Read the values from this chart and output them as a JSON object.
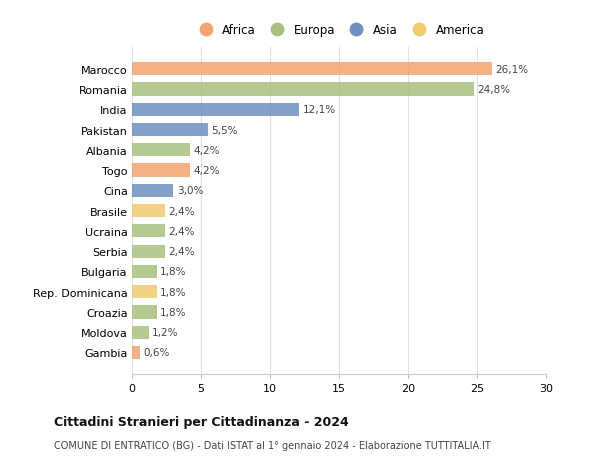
{
  "countries": [
    "Marocco",
    "Romania",
    "India",
    "Pakistan",
    "Albania",
    "Togo",
    "Cina",
    "Brasile",
    "Ucraina",
    "Serbia",
    "Bulgaria",
    "Rep. Dominicana",
    "Croazia",
    "Moldova",
    "Gambia"
  ],
  "values": [
    26.1,
    24.8,
    12.1,
    5.5,
    4.2,
    4.2,
    3.0,
    2.4,
    2.4,
    2.4,
    1.8,
    1.8,
    1.8,
    1.2,
    0.6
  ],
  "labels": [
    "26,1%",
    "24,8%",
    "12,1%",
    "5,5%",
    "4,2%",
    "4,2%",
    "3,0%",
    "2,4%",
    "2,4%",
    "2,4%",
    "1,8%",
    "1,8%",
    "1,8%",
    "1,2%",
    "0,6%"
  ],
  "continents": [
    "Africa",
    "Europa",
    "Asia",
    "Asia",
    "Europa",
    "Africa",
    "Asia",
    "America",
    "Europa",
    "Europa",
    "Europa",
    "America",
    "Europa",
    "Europa",
    "Africa"
  ],
  "colors": {
    "Africa": "#F4A470",
    "Europa": "#A8C080",
    "Asia": "#7090C0",
    "America": "#F0CC70"
  },
  "legend_order": [
    "Africa",
    "Europa",
    "Asia",
    "America"
  ],
  "title": "Cittadini Stranieri per Cittadinanza - 2024",
  "subtitle": "COMUNE DI ENTRATICO (BG) - Dati ISTAT al 1° gennaio 2024 - Elaborazione TUTTITALIA.IT",
  "xlim": [
    0,
    30
  ],
  "xticks": [
    0,
    5,
    10,
    15,
    20,
    25,
    30
  ],
  "bg_color": "#FFFFFF",
  "grid_color": "#E0E0E0",
  "bar_height": 0.65
}
